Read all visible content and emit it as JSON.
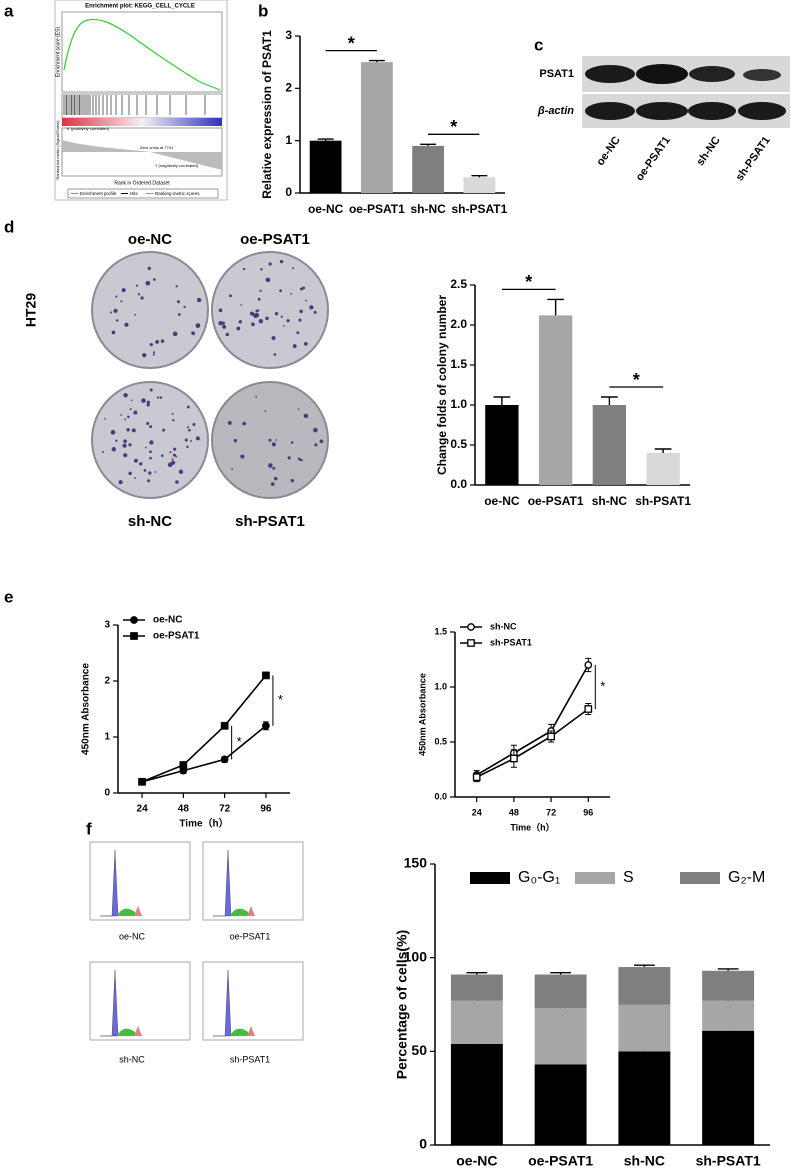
{
  "panel_labels": [
    "a",
    "b",
    "c",
    "d",
    "e",
    "f"
  ],
  "gsea": {
    "title": "Enrichment plot: KEGG_CELL_CYCLE",
    "y_label": "Enrichment score (ES)",
    "y2_label": "Ranked list metric (Signal2Noise)",
    "x_label": "Rank in Ordered Dataset",
    "pos_label": "'h' (positively correlated)",
    "neg_label": "'l' (negatively correlated)",
    "zero_cross": "Zero cross at 7741",
    "legend": [
      "Enrichment profile",
      "Hits",
      "Ranking metric scores"
    ]
  },
  "western": {
    "rows": [
      "PSAT1",
      "β-actin"
    ],
    "lanes": [
      "oe-NC",
      "oe-PSAT1",
      "sh-NC",
      "sh-PSAT1"
    ]
  },
  "colony": {
    "cell_line": "HT29",
    "plates": [
      "oe-NC",
      "oe-PSAT1",
      "sh-NC",
      "sh-PSAT1"
    ]
  },
  "flow": {
    "plates": [
      "oe-NC",
      "oe-PSAT1",
      "sh-NC",
      "sh-PSAT1"
    ]
  },
  "chart_data": [
    {
      "type": "bar",
      "y_label": "Relative expression of PSAT1",
      "categories": [
        "oe-NC",
        "oe-PSAT1",
        "sh-NC",
        "sh-PSAT1"
      ],
      "values": [
        1.0,
        2.5,
        0.9,
        0.3
      ],
      "errors": [
        0.03,
        0.03,
        0.03,
        0.03
      ],
      "colors": [
        "#000000",
        "#a6a6a6",
        "#7f7f7f",
        "#d9d9d9"
      ],
      "ylim": [
        0,
        3
      ],
      "yticks": [
        0,
        1,
        2,
        3
      ],
      "annotations": [
        "*",
        "*"
      ]
    },
    {
      "type": "bar",
      "y_label": "Change folds of  colony number",
      "categories": [
        "oe-NC",
        "oe-PSAT1",
        "sh-NC",
        "sh-PSAT1"
      ],
      "values": [
        1.0,
        2.12,
        1.0,
        0.4
      ],
      "errors": [
        0.1,
        0.2,
        0.1,
        0.05
      ],
      "colors": [
        "#000000",
        "#a6a6a6",
        "#7f7f7f",
        "#d9d9d9"
      ],
      "ylim": [
        0,
        2.5
      ],
      "yticks": [
        {
          "value": 0,
          "label": "0.0"
        },
        0.5,
        {
          "value": 1,
          "label": "1.0"
        },
        1.5,
        {
          "value": 2,
          "label": "2.0"
        },
        2.5
      ],
      "annotations": [
        "*",
        "*"
      ]
    },
    {
      "type": "line",
      "x_label": "Time（h）",
      "y_label": "450nm Absorbance",
      "x": [
        24,
        48,
        72,
        96
      ],
      "xlim": [
        10,
        110
      ],
      "xticks": [
        24,
        48,
        72,
        96
      ],
      "ylim": [
        0,
        3
      ],
      "yticks": [
        0,
        1,
        2,
        3
      ],
      "series": [
        {
          "name": "oe-NC",
          "color": "#000000",
          "marker": "circle",
          "values": [
            0.2,
            0.4,
            0.6,
            1.2
          ],
          "errors": [
            0.03,
            0.05,
            0.05,
            0.07
          ]
        },
        {
          "name": "oe-PSAT1",
          "color": "#000000",
          "marker": "square",
          "values": [
            0.2,
            0.5,
            1.2,
            2.1
          ],
          "errors": [
            0.03,
            0.04,
            0.04,
            0.04
          ]
        }
      ],
      "annotations": [
        "*",
        "*"
      ]
    },
    {
      "type": "line",
      "x_label": "Time（h）",
      "y_label": "450nm Absorbance",
      "x": [
        24,
        48,
        72,
        96
      ],
      "xlim": [
        10,
        110
      ],
      "xticks": [
        24,
        48,
        72,
        96
      ],
      "ylim": [
        0,
        1.5
      ],
      "yticks": [
        {
          "value": 0,
          "label": "0.0"
        },
        0.5,
        {
          "value": 1,
          "label": "1.0"
        },
        1.5
      ],
      "series": [
        {
          "name": "sh-NC",
          "color": "#000000",
          "marker": "circle-open",
          "values": [
            0.2,
            0.4,
            0.6,
            1.2
          ],
          "errors": [
            0.04,
            0.07,
            0.06,
            0.06
          ]
        },
        {
          "name": "sh-PSAT1",
          "color": "#000000",
          "marker": "square-open",
          "values": [
            0.18,
            0.35,
            0.55,
            0.8
          ],
          "errors": [
            0.04,
            0.08,
            0.05,
            0.05
          ]
        }
      ],
      "annotations": [
        "*"
      ]
    },
    {
      "type": "stacked_bar",
      "y_label": "Percentage of cells(%)",
      "categories": [
        "oe-NC",
        "oe-PSAT1",
        "sh-NC",
        "sh-PSAT1"
      ],
      "ylim": [
        0,
        150
      ],
      "yticks": [
        0,
        50,
        100,
        150
      ],
      "series": [
        {
          "name": "G₀-G₁",
          "color": "#000000",
          "values": [
            54,
            43,
            50,
            61
          ],
          "errors": [
            3,
            2,
            3,
            4
          ]
        },
        {
          "name": "S",
          "color": "#a6a6a6",
          "values": [
            23,
            30,
            25,
            16
          ],
          "errors": [
            2,
            2,
            2,
            1
          ]
        },
        {
          "name": "G₂-M",
          "color": "#7f7f7f",
          "values": [
            14,
            18,
            20,
            16
          ],
          "errors": [
            1,
            1,
            1,
            1
          ]
        }
      ]
    }
  ]
}
